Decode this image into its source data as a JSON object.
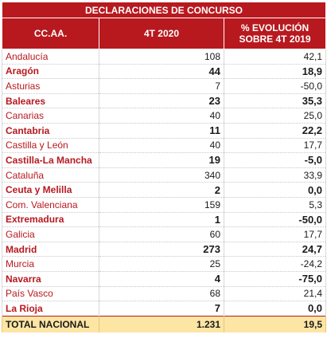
{
  "table": {
    "title": "DECLARACIONES DE CONCURSO",
    "headers": [
      "CC.AA.",
      "4T 2020",
      "% EVOLUCIÓN SOBRE 4T 2019"
    ],
    "rows": [
      {
        "region": "Andalucía",
        "value": "108",
        "evolution": "42,1",
        "bold": false
      },
      {
        "region": "Aragón",
        "value": "44",
        "evolution": "18,9",
        "bold": true
      },
      {
        "region": "Asturias",
        "value": "7",
        "evolution": "-50,0",
        "bold": false
      },
      {
        "region": "Baleares",
        "value": "23",
        "evolution": "35,3",
        "bold": true
      },
      {
        "region": "Canarias",
        "value": "40",
        "evolution": "25,0",
        "bold": false
      },
      {
        "region": "Cantabria",
        "value": "11",
        "evolution": "22,2",
        "bold": true
      },
      {
        "region": "Castilla y León",
        "value": "40",
        "evolution": "17,7",
        "bold": false
      },
      {
        "region": "Castilla-La Mancha",
        "value": "19",
        "evolution": "-5,0",
        "bold": true
      },
      {
        "region": "Cataluña",
        "value": "340",
        "evolution": "33,9",
        "bold": false
      },
      {
        "region": "Ceuta y Melilla",
        "value": "2",
        "evolution": "0,0",
        "bold": true
      },
      {
        "region": "Com. Valenciana",
        "value": "159",
        "evolution": "5,3",
        "bold": false
      },
      {
        "region": "Extremadura",
        "value": "1",
        "evolution": "-50,0",
        "bold": true
      },
      {
        "region": "Galicia",
        "value": "60",
        "evolution": "17,7",
        "bold": false
      },
      {
        "region": "Madrid",
        "value": "273",
        "evolution": "24,7",
        "bold": true
      },
      {
        "region": "Murcia",
        "value": "25",
        "evolution": "-24,2",
        "bold": false
      },
      {
        "region": "Navarra",
        "value": "4",
        "evolution": "-75,0",
        "bold": true
      },
      {
        "region": "País Vasco",
        "value": "68",
        "evolution": "21,4",
        "bold": false
      },
      {
        "region": "La Rioja",
        "value": "7",
        "evolution": "0,0",
        "bold": true
      }
    ],
    "total": {
      "label": "TOTAL NACIONAL",
      "value": "1.231",
      "evolution": "19,5"
    }
  },
  "colors": {
    "header_bg": "#b7191f",
    "region_text": "#b7191f",
    "total_bg": "#fde5a4"
  }
}
